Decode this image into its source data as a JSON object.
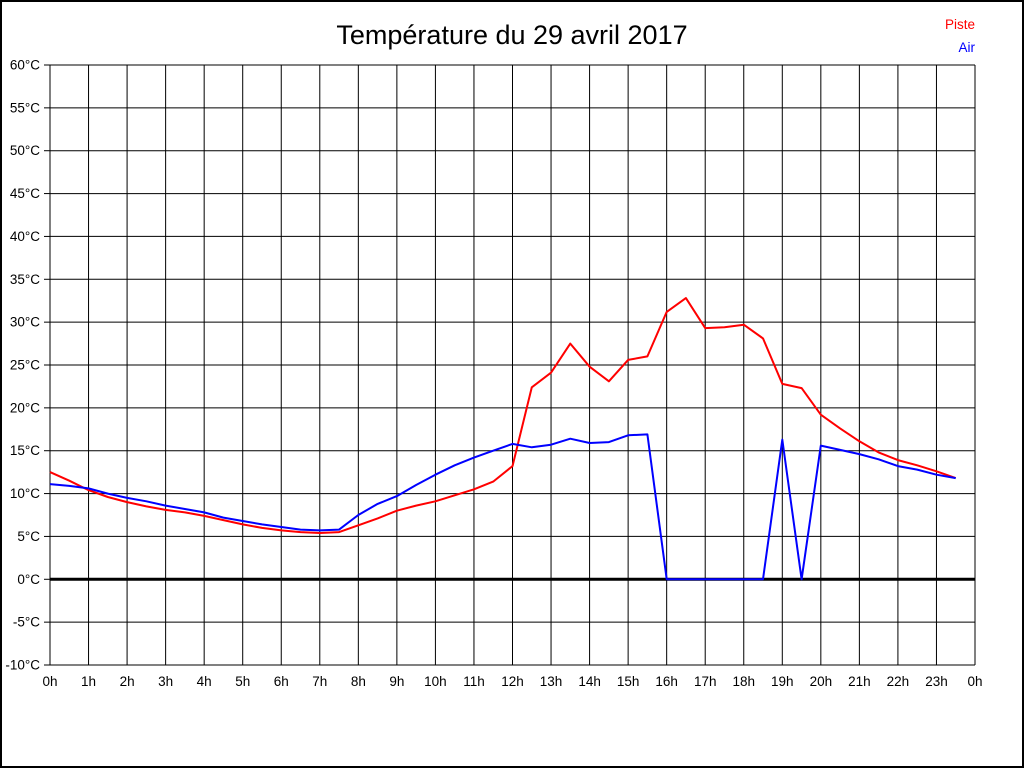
{
  "title": "Température du 29 avril 2017",
  "legend": {
    "items": [
      {
        "label": "Piste",
        "color": "#ff0000"
      },
      {
        "label": "Air",
        "color": "#0000ff"
      }
    ]
  },
  "chart_data": {
    "type": "line",
    "title": "Température du 29 avril 2017",
    "xlabel": "",
    "ylabel": "",
    "x_unit": "hours",
    "xlim": [
      0,
      24
    ],
    "ylim": [
      -10,
      60
    ],
    "grid": true,
    "legend_position": "top-right",
    "zero_line": {
      "value": 0,
      "color": "#000000",
      "width": 3
    },
    "x": [
      0,
      0.5,
      1,
      1.5,
      2,
      2.5,
      3,
      3.5,
      4,
      4.5,
      5,
      5.5,
      6,
      6.5,
      7,
      7.5,
      8,
      8.5,
      9,
      9.5,
      10,
      10.5,
      11,
      11.5,
      12,
      12.5,
      13,
      13.5,
      14,
      14.5,
      15,
      15.5,
      16,
      16.5,
      17,
      17.5,
      18,
      18.5,
      19,
      19.5,
      20,
      20.5,
      21,
      21.5,
      22,
      22.5,
      23,
      23.5
    ],
    "series": [
      {
        "name": "Piste",
        "color": "#ff0000",
        "values": [
          12.5,
          11.5,
          10.4,
          9.6,
          9.0,
          8.5,
          8.1,
          7.8,
          7.4,
          6.9,
          6.4,
          6.0,
          5.7,
          5.5,
          5.4,
          5.5,
          6.3,
          7.1,
          8.0,
          8.6,
          9.1,
          9.8,
          10.5,
          11.4,
          13.2,
          22.4,
          24.1,
          27.5,
          24.8,
          23.1,
          25.6,
          26.0,
          31.2,
          32.8,
          29.3,
          29.4,
          29.7,
          28.1,
          22.8,
          22.3,
          19.2,
          17.6,
          16.1,
          14.8,
          13.9,
          13.3,
          12.6,
          11.8
        ]
      },
      {
        "name": "Air",
        "color": "#0000ff",
        "values": [
          11.1,
          10.9,
          10.6,
          10.0,
          9.5,
          9.1,
          8.6,
          8.2,
          7.8,
          7.2,
          6.8,
          6.4,
          6.1,
          5.8,
          5.7,
          5.8,
          7.5,
          8.8,
          9.7,
          11.0,
          12.2,
          13.3,
          14.2,
          15.0,
          15.8,
          15.4,
          15.7,
          16.4,
          15.9,
          16.0,
          16.8,
          16.9,
          0,
          0,
          0,
          0,
          0,
          0,
          16.3,
          0,
          15.6,
          15.1,
          14.6,
          14.0,
          13.2,
          12.8,
          12.2,
          11.8
        ]
      }
    ],
    "x_tick_labels": [
      "0h",
      "1h",
      "2h",
      "3h",
      "4h",
      "5h",
      "6h",
      "7h",
      "8h",
      "9h",
      "10h",
      "11h",
      "12h",
      "13h",
      "14h",
      "15h",
      "16h",
      "17h",
      "18h",
      "19h",
      "20h",
      "21h",
      "22h",
      "23h",
      "0h"
    ],
    "y_tick_labels": [
      "60°C",
      "55°C",
      "50°C",
      "45°C",
      "40°C",
      "35°C",
      "30°C",
      "25°C",
      "20°C",
      "15°C",
      "10°C",
      "5°C",
      "0°C",
      "-5°C",
      "-10°C"
    ]
  }
}
